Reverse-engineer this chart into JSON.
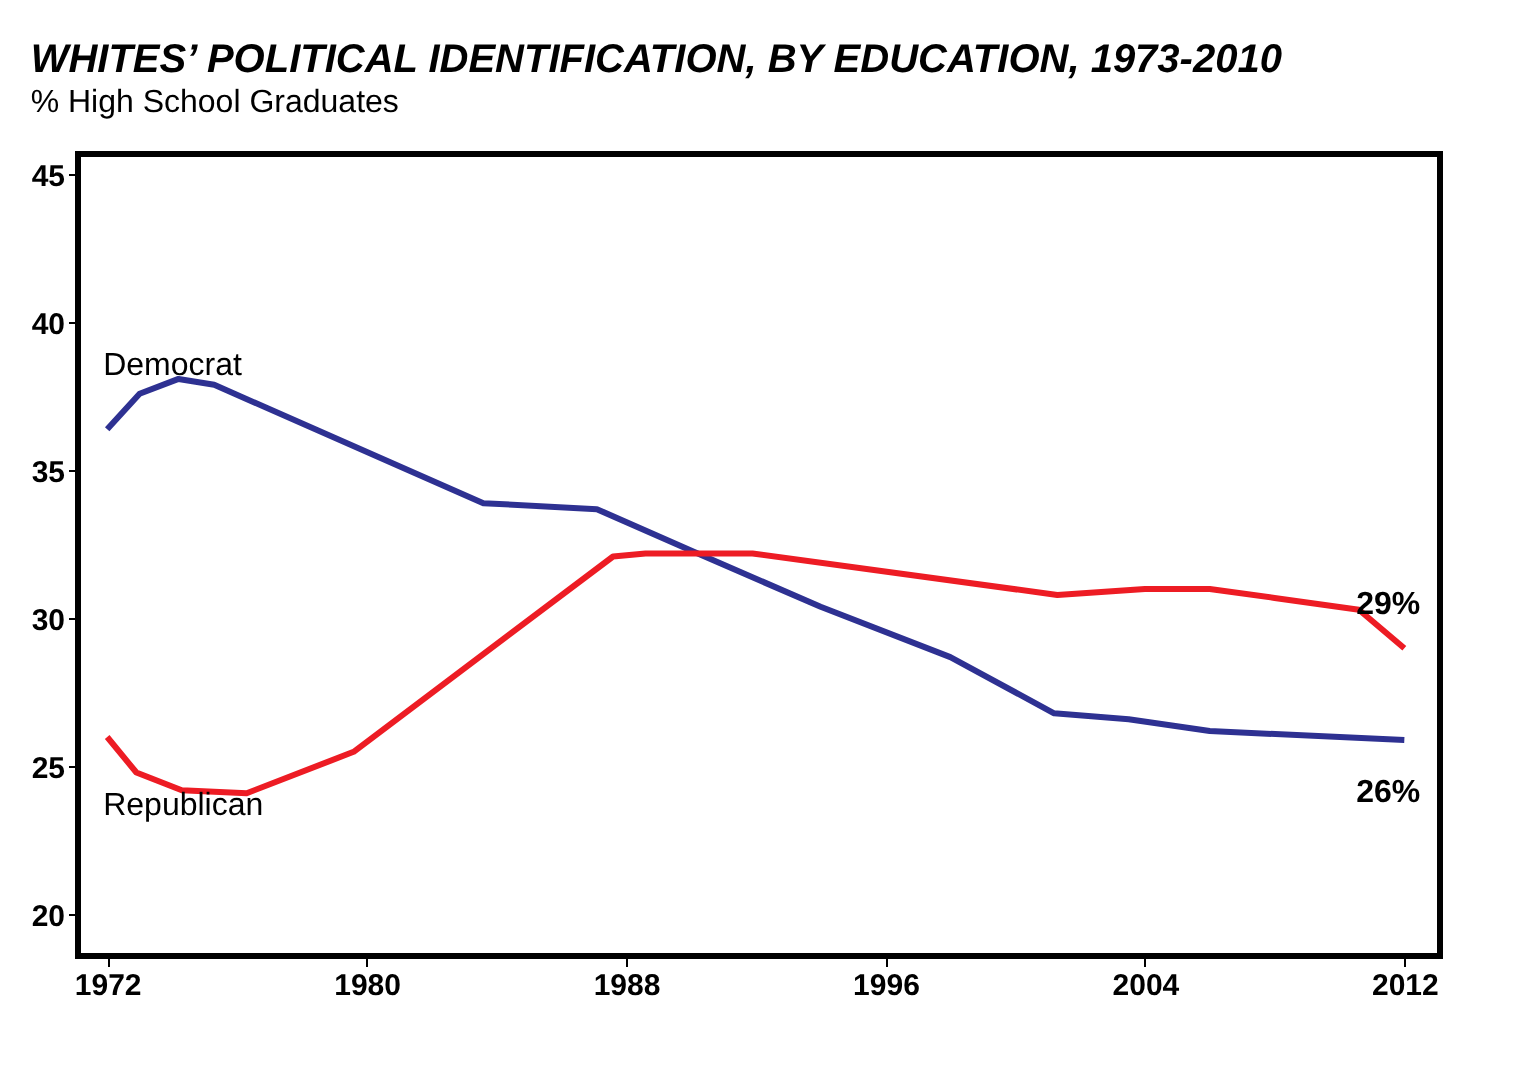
{
  "chart_data": {
    "type": "line",
    "title": "WHITES’ POLITICAL IDENTIFICATION, BY EDUCATION, 1973-2010",
    "subtitle": "% High School Graduates",
    "series": [
      {
        "name": "Democrat",
        "color": "#2e3192",
        "x": [
          1972,
          1973,
          1974.2,
          1975.3,
          1983.6,
          1987.1,
          1990,
          1994,
          1998,
          2001.2,
          2003.5,
          2006,
          2012
        ],
        "values": [
          36.4,
          37.6,
          38.1,
          37.9,
          33.9,
          33.7,
          32.3,
          30.4,
          28.7,
          26.8,
          26.6,
          26.2,
          25.9
        ]
      },
      {
        "name": "Republican",
        "color": "#ed1c24",
        "x": [
          1972,
          1972.9,
          1974.3,
          1976.3,
          1979.6,
          1987.6,
          1988.6,
          1991.9,
          2001.3,
          2004,
          2006,
          2008,
          2010.6,
          2012
        ],
        "values": [
          26.0,
          24.8,
          24.2,
          24.1,
          25.5,
          32.1,
          32.2,
          32.2,
          30.8,
          31.0,
          31.0,
          30.7,
          30.3,
          29.0
        ]
      }
    ],
    "annotations": [
      {
        "text": "29%",
        "x": 2012,
        "y": 29.0
      },
      {
        "text": "26%",
        "x": 2012,
        "y": 25.9
      }
    ],
    "xlim": [
      1971.1,
      2013.1
    ],
    "xticks": [
      1972,
      1980,
      1988,
      1996,
      2004,
      2012
    ],
    "ylim": [
      18.6,
      45.7
    ],
    "yticks": [
      20,
      25,
      30,
      35,
      40,
      45
    ],
    "grid": false,
    "line_style": "solid",
    "marker": "none"
  }
}
